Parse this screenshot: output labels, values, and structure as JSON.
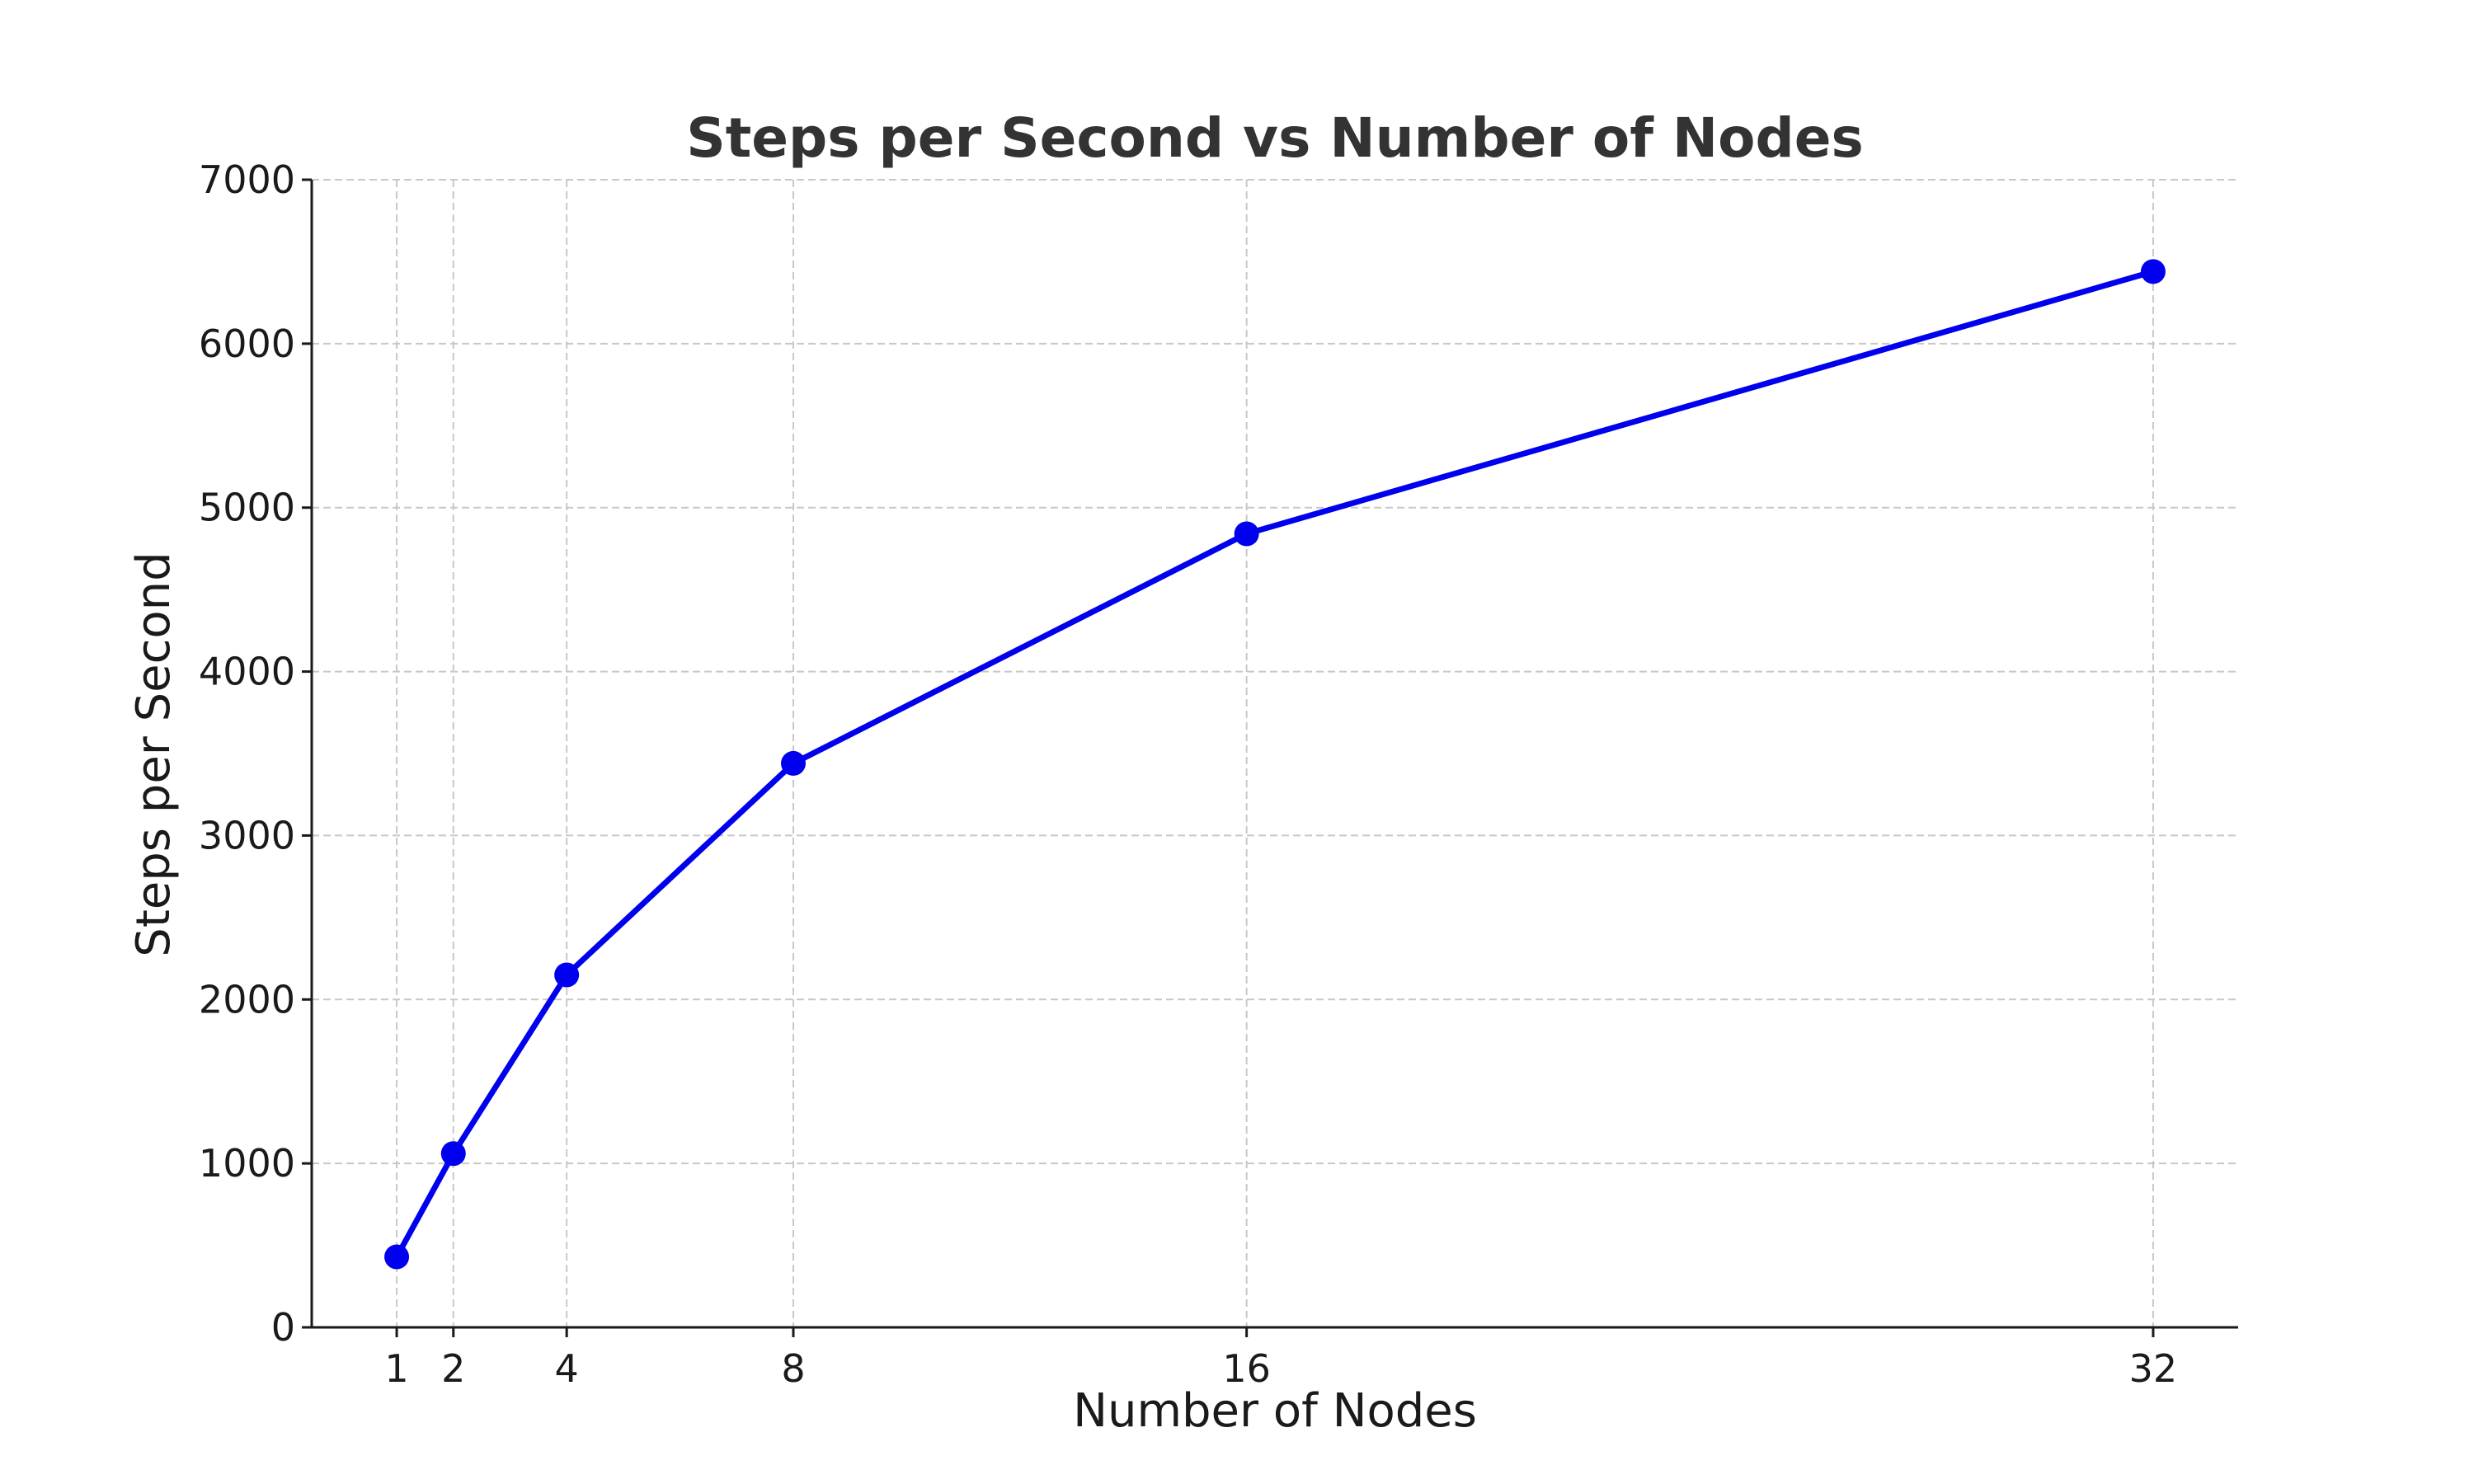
{
  "chart_data": {
    "type": "line",
    "title": "Steps per Second vs Number of Nodes",
    "xlabel": "Number of Nodes",
    "ylabel": "Steps per Second",
    "x": [
      1,
      2,
      4,
      8,
      16,
      32
    ],
    "xticks": [
      "1",
      "2",
      "4",
      "8",
      "16",
      "32"
    ],
    "xlim": [
      -0.5,
      33.5
    ],
    "ylim": [
      0,
      7000
    ],
    "yticks": [
      "0",
      "1000",
      "2000",
      "3000",
      "4000",
      "5000",
      "6000",
      "7000"
    ],
    "ytick_values": [
      0,
      1000,
      2000,
      3000,
      4000,
      5000,
      6000,
      7000
    ],
    "grid": true,
    "series": [
      {
        "values": [
          430,
          1060,
          2150,
          3440,
          4840,
          6440
        ],
        "color": "#0000ee",
        "marker": "circle"
      }
    ]
  }
}
